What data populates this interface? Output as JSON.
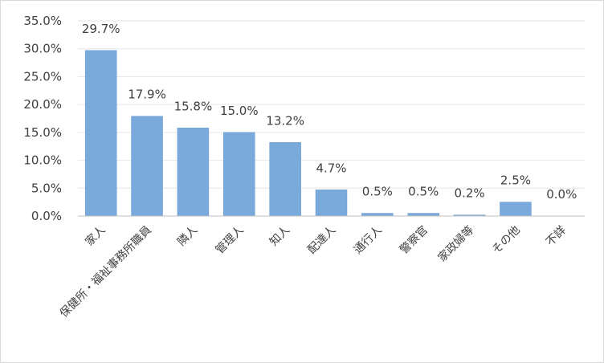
{
  "chart_data": {
    "type": "bar",
    "categories": [
      "家人",
      "保健所・福祉事務所職員",
      "隣人",
      "管理人",
      "知人",
      "配達人",
      "通行人",
      "警察官",
      "家政婦等",
      "その他",
      "不詳"
    ],
    "values": [
      29.7,
      17.9,
      15.8,
      15.0,
      13.2,
      4.7,
      0.5,
      0.5,
      0.2,
      2.5,
      0.0
    ],
    "data_labels": [
      "29.7%",
      "17.9%",
      "15.8%",
      "15.0%",
      "13.2%",
      "4.7%",
      "0.5%",
      "0.5%",
      "0.2%",
      "2.5%",
      "0.0%"
    ],
    "y_ticks": [
      0,
      5,
      10,
      15,
      20,
      25,
      30,
      35
    ],
    "y_tick_labels": [
      "0.0%",
      "5.0%",
      "10.0%",
      "15.0%",
      "20.0%",
      "25.0%",
      "30.0%",
      "35.0%"
    ],
    "ylim": [
      0,
      35
    ],
    "grid": true,
    "title": "",
    "xlabel": "",
    "ylabel": "",
    "colors": {
      "bar": "#7aa9dc",
      "bar_edge": "#6a9bd1"
    }
  }
}
